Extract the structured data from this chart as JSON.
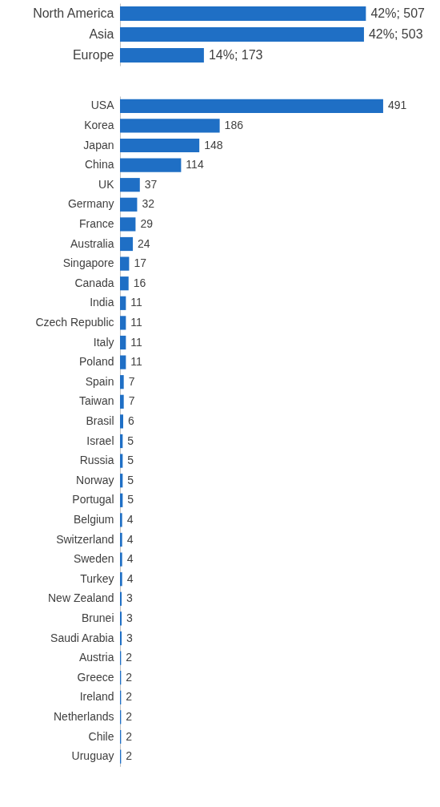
{
  "chart_data": [
    {
      "type": "bar",
      "orientation": "horizontal",
      "categories": [
        "North America",
        "Asia",
        "Europe"
      ],
      "values": [
        507,
        503,
        173
      ],
      "color": "#1f6fc5",
      "value_labels": [
        "42%; 507",
        "42%; 503",
        "14%; 173"
      ]
    },
    {
      "type": "bar",
      "orientation": "horizontal",
      "categories": [
        "USA",
        "Korea",
        "Japan",
        "China",
        "UK",
        "Germany",
        "France",
        "Australia",
        "Singapore",
        "Canada",
        "India",
        "Czech Republic",
        "Italy",
        "Poland",
        "Spain",
        "Taiwan",
        "Brasil",
        "Israel",
        "Russia",
        "Norway",
        "Portugal",
        "Belgium",
        "Switzerland",
        "Sweden",
        "Turkey",
        "New Zealand",
        "Brunei",
        "Saudi Arabia",
        "Austria",
        "Greece",
        "Ireland",
        "Netherlands",
        "Chile",
        "Uruguay"
      ],
      "values": [
        491,
        186,
        148,
        114,
        37,
        32,
        29,
        24,
        17,
        16,
        11,
        11,
        11,
        11,
        7,
        7,
        6,
        5,
        5,
        5,
        5,
        4,
        4,
        4,
        4,
        3,
        3,
        3,
        2,
        2,
        2,
        2,
        2,
        2
      ],
      "color": "#1f6fc5",
      "data_labels": true
    }
  ]
}
